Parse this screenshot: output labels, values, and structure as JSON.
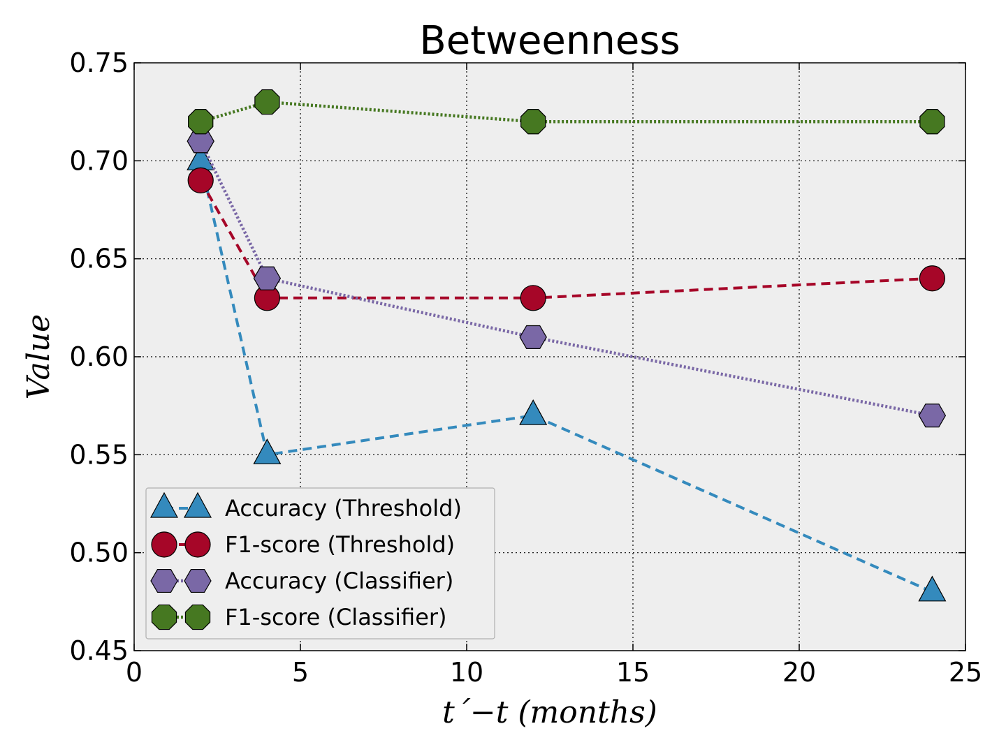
{
  "chart_data": {
    "type": "line",
    "title": "Betweenness",
    "xlabel": "t´−t (months)",
    "ylabel": "Value",
    "xlim": [
      0,
      25
    ],
    "ylim": [
      0.45,
      0.75
    ],
    "xticks": [
      0,
      5,
      10,
      15,
      20,
      25
    ],
    "xtick_labels": [
      "0",
      "5",
      "10",
      "15",
      "20",
      "25"
    ],
    "yticks": [
      0.45,
      0.5,
      0.55,
      0.6,
      0.65,
      0.7,
      0.75
    ],
    "ytick_labels": [
      "0.45",
      "0.50",
      "0.55",
      "0.60",
      "0.65",
      "0.70",
      "0.75"
    ],
    "grid": true,
    "legend_position": "lower-left",
    "x": [
      2,
      4,
      12,
      24
    ],
    "series": [
      {
        "name": "Accuracy (Threshold)",
        "values": [
          0.7,
          0.55,
          0.57,
          0.48
        ],
        "color": "#348abd",
        "marker": "triangle",
        "line": "dashed"
      },
      {
        "name": "F1-score (Threshold)",
        "values": [
          0.69,
          0.63,
          0.63,
          0.64
        ],
        "color": "#a60628",
        "marker": "circle",
        "line": "dashed"
      },
      {
        "name": "Accuracy (Classifier)",
        "values": [
          0.71,
          0.64,
          0.61,
          0.57
        ],
        "color": "#7a68a6",
        "marker": "hexagon",
        "line": "dotted"
      },
      {
        "name": "F1-score (Classifier)",
        "values": [
          0.72,
          0.73,
          0.72,
          0.72
        ],
        "color": "#467821",
        "marker": "octagon",
        "line": "dotted"
      }
    ]
  }
}
